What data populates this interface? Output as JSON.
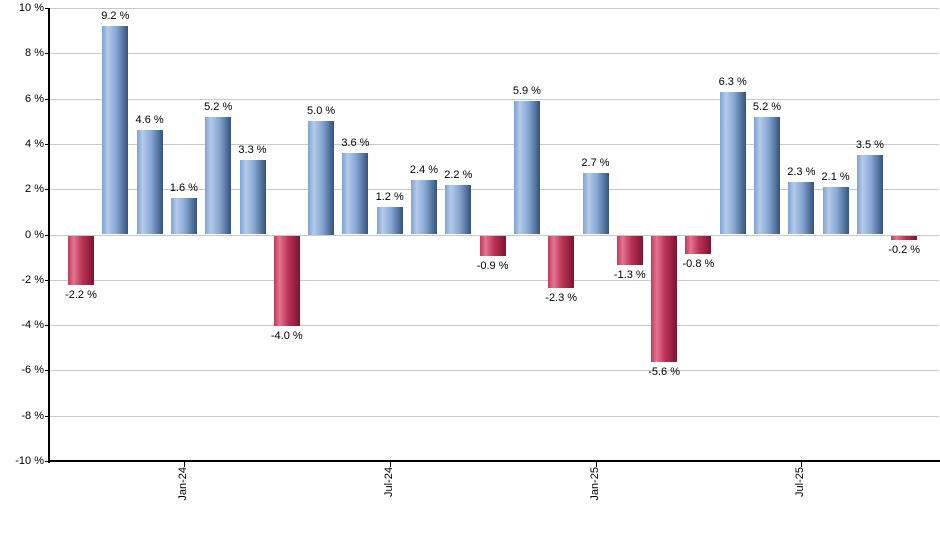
{
  "chart_data": {
    "type": "bar",
    "title": "",
    "xlabel": "",
    "ylabel": "",
    "ylim": [
      -10,
      10
    ],
    "grid": true,
    "legend": "none",
    "y_ticks": [
      {
        "value": 10,
        "label": "10 %"
      },
      {
        "value": 8,
        "label": "8 %"
      },
      {
        "value": 6,
        "label": "6 %"
      },
      {
        "value": 4,
        "label": "4 %"
      },
      {
        "value": 2,
        "label": "2 %"
      },
      {
        "value": 0,
        "label": "0 %"
      },
      {
        "value": -2,
        "label": "-2 %"
      },
      {
        "value": -4,
        "label": "-4 %"
      },
      {
        "value": -6,
        "label": "-6 %"
      },
      {
        "value": -8,
        "label": "-8 %"
      },
      {
        "value": -10,
        "label": "-10 %"
      }
    ],
    "values": [
      -2.2,
      9.2,
      4.6,
      1.6,
      5.2,
      3.3,
      -4.0,
      5.0,
      3.6,
      1.2,
      2.4,
      2.2,
      -0.9,
      5.9,
      -2.3,
      2.7,
      -1.3,
      -5.6,
      -0.8,
      6.3,
      5.2,
      2.3,
      2.1,
      3.5,
      -0.2
    ],
    "bar_labels": [
      "-2.2 %",
      "9.2 %",
      "4.6 %",
      "1.6 %",
      "5.2 %",
      "3.3 %",
      "-4.0 %",
      "5.0 %",
      "3.6 %",
      "1.2 %",
      "2.4 %",
      "2.2 %",
      "-0.9 %",
      "5.9 %",
      "-2.3 %",
      "2.7 %",
      "-1.3 %",
      "-5.6 %",
      "-0.8 %",
      "6.3 %",
      "5.2 %",
      "2.3 %",
      "2.1 %",
      "3.5 %",
      "-0.2 %"
    ],
    "x_tick_labels": [
      {
        "label": "Jan-24",
        "bar_index": 3
      },
      {
        "label": "Jul-24",
        "bar_index": 9
      },
      {
        "label": "Jan-25",
        "bar_index": 15
      },
      {
        "label": "Jul-25",
        "bar_index": 21
      }
    ],
    "colors": {
      "positive_bar_gradient": [
        "#7fa2d0",
        "#b4cbea",
        "#86a6d3",
        "#34527e"
      ],
      "negative_bar_gradient": [
        "#c13a5a",
        "#e37490",
        "#bb3156",
        "#7c1430"
      ],
      "gridline": "#c9c9c9",
      "axis": "#000000",
      "text": "#000000",
      "background": "#ffffff"
    }
  }
}
